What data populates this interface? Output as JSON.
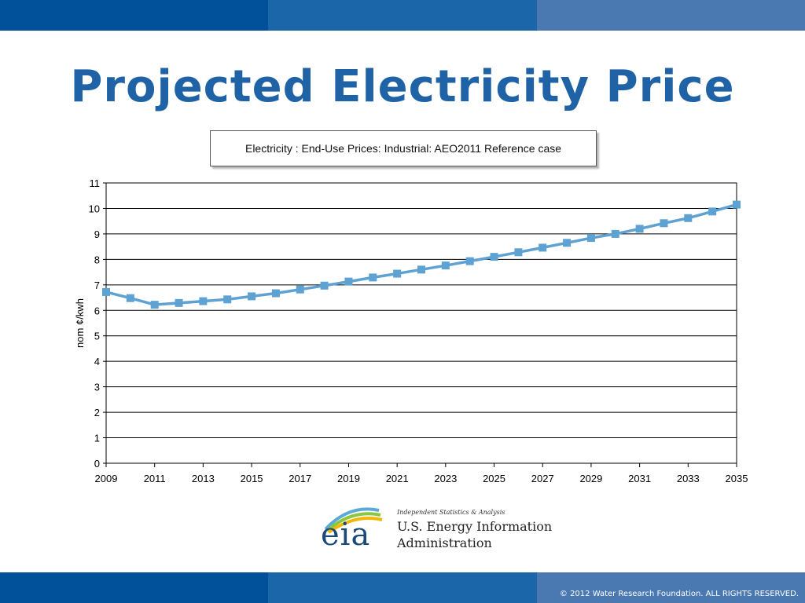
{
  "slide": {
    "title": "Projected Electricity Price",
    "copyright": "© 2012 Water Research Foundation. ALL RIGHTS RESERVED."
  },
  "logo": {
    "mark": "eia",
    "tagline": "Independent Statistics & Analysis",
    "org_line1": "U.S. Energy Information",
    "org_line2": "Administration"
  },
  "colors": {
    "band_dark": "#00509a",
    "band_mid": "#1a66a8",
    "band_light": "#4a78b0",
    "title": "#1f63a6",
    "series": "#5ea2d4"
  },
  "chart_data": {
    "type": "line",
    "title": "Electricity : End-Use Prices: Industrial: AEO2011 Reference case",
    "xlabel": "",
    "ylabel": "nom ¢/kwh",
    "ylim": [
      0,
      11
    ],
    "yticks": [
      0,
      1,
      2,
      3,
      4,
      5,
      6,
      7,
      8,
      9,
      10,
      11
    ],
    "xlim": [
      2009,
      2035
    ],
    "xticks": [
      2009,
      2011,
      2013,
      2015,
      2017,
      2019,
      2021,
      2023,
      2025,
      2027,
      2029,
      2031,
      2033,
      2035
    ],
    "grid": "horizontal",
    "legend": "none",
    "x": [
      2009,
      2010,
      2011,
      2012,
      2013,
      2014,
      2015,
      2016,
      2017,
      2018,
      2019,
      2020,
      2021,
      2022,
      2023,
      2024,
      2025,
      2026,
      2027,
      2028,
      2029,
      2030,
      2031,
      2032,
      2033,
      2034,
      2035
    ],
    "series": [
      {
        "values": [
          6.72,
          6.48,
          6.22,
          6.29,
          6.36,
          6.43,
          6.55,
          6.67,
          6.82,
          6.97,
          7.13,
          7.29,
          7.44,
          7.6,
          7.76,
          7.93,
          8.1,
          8.28,
          8.46,
          8.65,
          8.84,
          9.0,
          9.2,
          9.42,
          9.62,
          9.88,
          10.15
        ]
      }
    ]
  }
}
